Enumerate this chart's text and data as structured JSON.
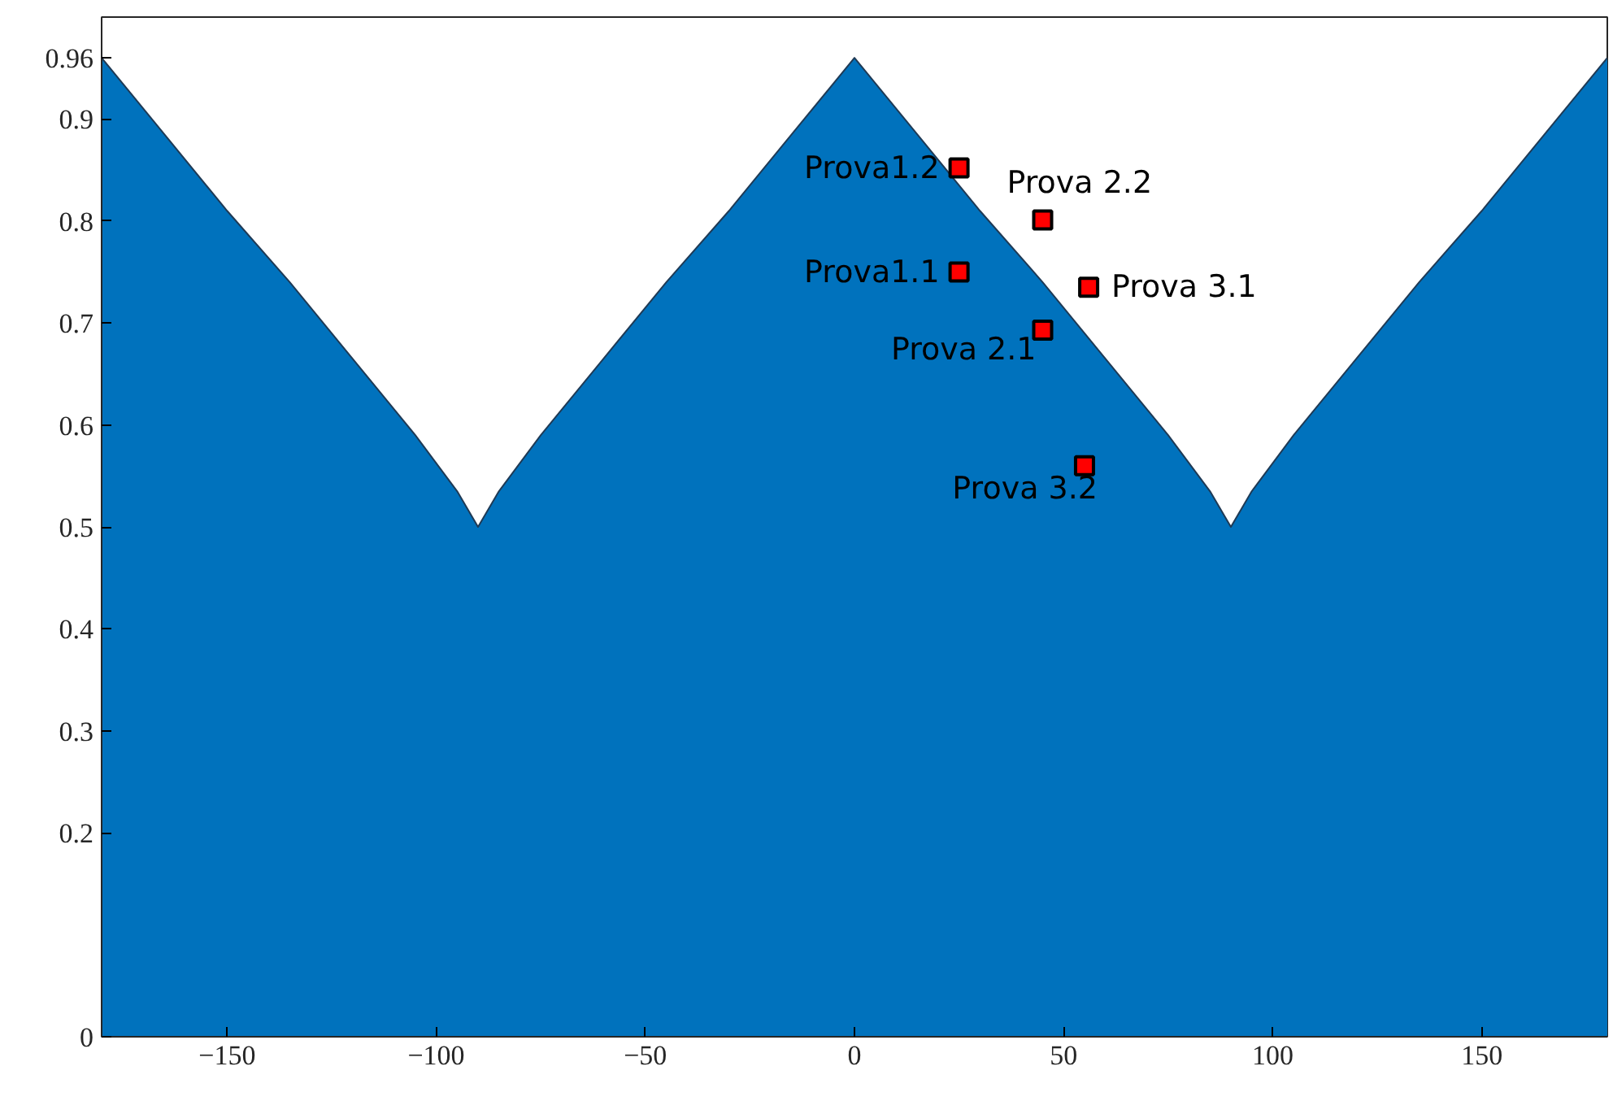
{
  "chart_data": {
    "type": "area",
    "xlim": [
      -180,
      180
    ],
    "ylim": [
      0,
      1
    ],
    "xticks": [
      -150,
      -100,
      -50,
      0,
      50,
      100,
      150
    ],
    "yticks": [
      0,
      0.2,
      0.3,
      0.4,
      0.5,
      0.6,
      0.7,
      0.8,
      0.9,
      0.96
    ],
    "grid": false,
    "series": [
      {
        "color": "#0072bd",
        "x": [
          -180,
          -165,
          -150,
          -135,
          -120,
          -105,
          -95,
          -90,
          -85,
          -75,
          -60,
          -45,
          -30,
          -15,
          0,
          15,
          30,
          45,
          60,
          75,
          85,
          90,
          95,
          105,
          120,
          135,
          150,
          165,
          180
        ],
        "values": [
          0.96,
          0.885,
          0.81,
          0.74,
          0.665,
          0.59,
          0.535,
          0.5,
          0.535,
          0.59,
          0.665,
          0.74,
          0.81,
          0.885,
          0.96,
          0.885,
          0.81,
          0.74,
          0.665,
          0.59,
          0.535,
          0.5,
          0.535,
          0.59,
          0.665,
          0.74,
          0.81,
          0.885,
          0.96
        ]
      },
      {
        "type": "scatter",
        "marker": "square",
        "color": "#ff0000",
        "x": [
          25,
          45,
          25,
          56,
          45,
          55
        ],
        "values": [
          0.852,
          0.801,
          0.75,
          0.735,
          0.693,
          0.56
        ]
      }
    ],
    "annotations": [
      {
        "text": "Prova1.2",
        "x": 25,
        "y": 0.852
      },
      {
        "text": "Prova 2.2",
        "x": 45,
        "y": 0.801
      },
      {
        "text": "Prova1.1",
        "x": 25,
        "y": 0.75
      },
      {
        "text": "Prova 3.1",
        "x": 56,
        "y": 0.735
      },
      {
        "text": "Prova 2.1",
        "x": 45,
        "y": 0.693
      },
      {
        "text": "Prova 3.2",
        "x": 55,
        "y": 0.56
      }
    ]
  }
}
